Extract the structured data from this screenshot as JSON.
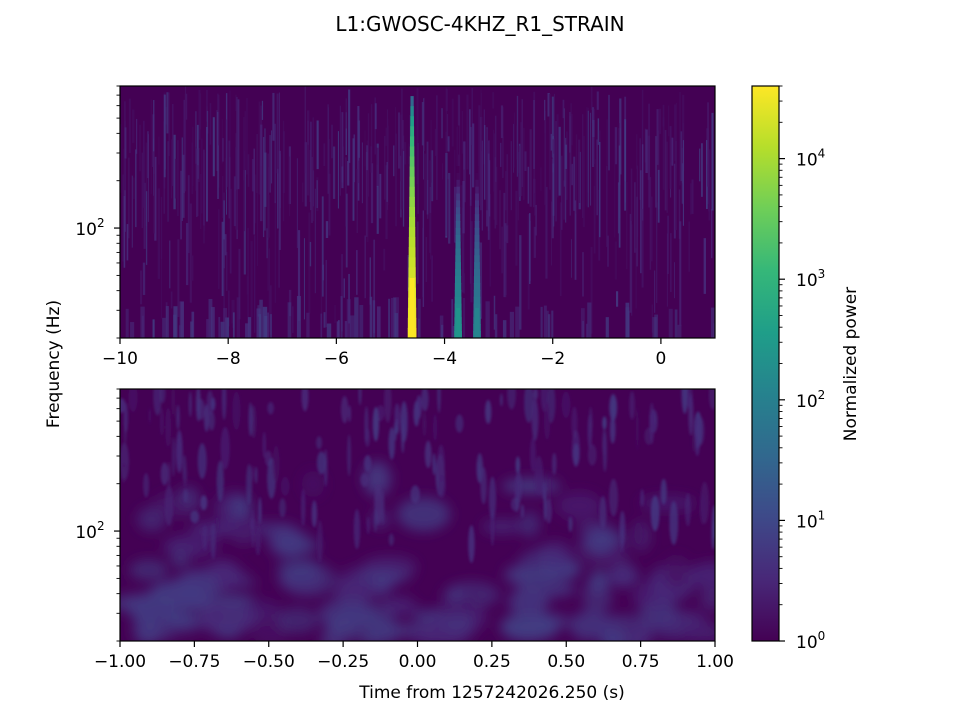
{
  "figure": {
    "title": "L1:GWOSC-4KHZ_R1_STRAIN",
    "ylabel": "Frequency (Hz)",
    "xlabel": "Time from 1257242026.250 (s)"
  },
  "colorbar": {
    "label": "Normalized power",
    "scale": "log",
    "range": [
      1,
      40000
    ],
    "colormap": "viridis",
    "ticks": [
      {
        "value": 1,
        "base": "10",
        "exp": "0"
      },
      {
        "value": 10,
        "base": "10",
        "exp": "1"
      },
      {
        "value": 100,
        "base": "10",
        "exp": "2"
      },
      {
        "value": 1000,
        "base": "10",
        "exp": "3"
      },
      {
        "value": 10000,
        "base": "10",
        "exp": "4"
      }
    ],
    "colors": [
      "#440154",
      "#482878",
      "#3e4989",
      "#31688e",
      "#26828e",
      "#1f9e89",
      "#35b779",
      "#6ece58",
      "#b5de2b",
      "#fde725"
    ]
  },
  "chart_data": [
    {
      "type": "heatmap",
      "name": "top-spectrogram",
      "xlim": [
        -10,
        1
      ],
      "x_ticks": [
        "−10",
        "−8",
        "−6",
        "−4",
        "−2",
        "0"
      ],
      "x_tick_values": [
        -10,
        -8,
        -6,
        -4,
        -2,
        0
      ],
      "y_scale": "log",
      "ylim": [
        20,
        800
      ],
      "y_major_ticks": [
        {
          "value": 100,
          "base": "10",
          "exp": "2"
        }
      ],
      "features": [
        {
          "t": -4.6,
          "peak_power": 40000
        },
        {
          "t": -3.75,
          "peak_power": 250
        },
        {
          "t": -3.4,
          "peak_power": 120
        }
      ]
    },
    {
      "type": "heatmap",
      "name": "bottom-spectrogram",
      "xlim": [
        -1,
        1
      ],
      "x_ticks": [
        "−1.00",
        "−0.75",
        "−0.50",
        "−0.25",
        "0.00",
        "0.25",
        "0.50",
        "0.75",
        "1.00"
      ],
      "x_tick_values": [
        -1,
        -0.75,
        -0.5,
        -0.25,
        0,
        0.25,
        0.5,
        0.75,
        1
      ],
      "y_scale": "log",
      "ylim": [
        20,
        800
      ],
      "y_major_ticks": [
        {
          "value": 100,
          "base": "10",
          "exp": "2"
        }
      ],
      "peak_power": 8
    }
  ]
}
